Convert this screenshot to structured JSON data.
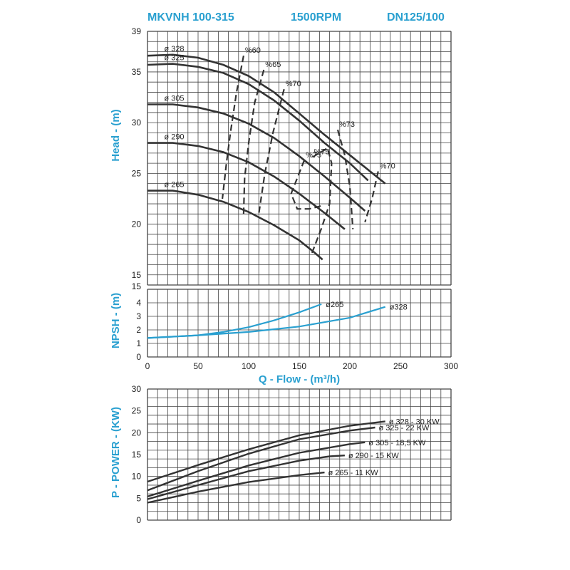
{
  "header": {
    "model": "MKVNH 100-315",
    "speed": "1500RPM",
    "size": "DN125/100"
  },
  "colors": {
    "accent": "#2aa0d0",
    "curve": "#333333",
    "grid": "#444444",
    "npsh": "#2aa0d0"
  },
  "chart_data": [
    {
      "type": "line",
      "name": "head",
      "ylabel": "Head - (m)",
      "xlim": [
        0,
        300
      ],
      "ylim": [
        14,
        39
      ],
      "yticks": [
        39,
        35,
        30,
        25,
        20,
        15
      ],
      "series": [
        {
          "label": "ø 328",
          "points": [
            [
              0,
              36.6
            ],
            [
              25,
              36.7
            ],
            [
              50,
              36.4
            ],
            [
              75,
              35.7
            ],
            [
              100,
              34.6
            ],
            [
              125,
              33.0
            ],
            [
              150,
              30.9
            ],
            [
              175,
              28.8
            ],
            [
              200,
              26.8
            ],
            [
              225,
              24.8
            ],
            [
              235,
              24.0
            ]
          ]
        },
        {
          "label": "ø 325",
          "points": [
            [
              0,
              35.7
            ],
            [
              25,
              35.8
            ],
            [
              50,
              35.5
            ],
            [
              75,
              34.9
            ],
            [
              100,
              33.8
            ],
            [
              125,
              32.2
            ],
            [
              150,
              30.2
            ],
            [
              175,
              28.0
            ],
            [
              200,
              26.0
            ],
            [
              218,
              24.3
            ]
          ]
        },
        {
          "label": "ø 305",
          "points": [
            [
              0,
              31.8
            ],
            [
              25,
              31.8
            ],
            [
              50,
              31.5
            ],
            [
              75,
              30.9
            ],
            [
              100,
              29.9
            ],
            [
              125,
              28.5
            ],
            [
              150,
              26.7
            ],
            [
              175,
              24.7
            ],
            [
              200,
              22.6
            ],
            [
              215,
              21.3
            ]
          ]
        },
        {
          "label": "ø 290",
          "points": [
            [
              0,
              28.0
            ],
            [
              25,
              28.0
            ],
            [
              50,
              27.7
            ],
            [
              75,
              27.1
            ],
            [
              100,
              26.1
            ],
            [
              125,
              24.7
            ],
            [
              150,
              23.0
            ],
            [
              175,
              21.1
            ],
            [
              195,
              19.5
            ]
          ]
        },
        {
          "label": "ø 265",
          "points": [
            [
              0,
              23.3
            ],
            [
              25,
              23.3
            ],
            [
              50,
              22.9
            ],
            [
              75,
              22.2
            ],
            [
              100,
              21.2
            ],
            [
              125,
              19.9
            ],
            [
              150,
              18.4
            ],
            [
              165,
              17.2
            ],
            [
              173,
              16.5
            ]
          ]
        }
      ],
      "efficiency_lines": [
        {
          "label": "%60",
          "points": [
            [
              95,
              36.6
            ],
            [
              88,
              33
            ],
            [
              82,
              29
            ],
            [
              78,
              26
            ],
            [
              74,
              22.5
            ]
          ]
        },
        {
          "label": "%65",
          "points": [
            [
              115,
              35.2
            ],
            [
              106,
              32
            ],
            [
              100,
              28
            ],
            [
              96,
              24.5
            ],
            [
              95,
              21
            ]
          ]
        },
        {
          "label": "%70",
          "points": [
            [
              135,
              33.3
            ],
            [
              124,
              29
            ],
            [
              116,
              25
            ],
            [
              110,
              21
            ]
          ]
        },
        {
          "label": "%70",
          "points": [
            [
              228,
              25.2
            ],
            [
              222,
              22.5
            ],
            [
              215,
              20.2
            ]
          ]
        },
        {
          "label": "%73",
          "points": [
            [
              188,
              29.3
            ],
            [
              195,
              26.8
            ],
            [
              200,
              23.7
            ],
            [
              203,
              19.5
            ]
          ]
        },
        {
          "label": "%75",
          "points": [
            [
              155,
              26.3
            ],
            [
              142,
              23.0
            ],
            [
              148,
              21.5
            ],
            [
              160,
              21.5
            ],
            [
              172,
              21.8
            ]
          ]
        },
        {
          "label": "%75",
          "points": [
            [
              163,
              26.6
            ],
            [
              178,
              27.5
            ],
            [
              182,
              26
            ],
            [
              180,
              22
            ],
            [
              172,
              19.6
            ],
            [
              162,
              17.0
            ]
          ]
        }
      ]
    },
    {
      "type": "line",
      "name": "npsh",
      "ylabel": "NPSH - (m)",
      "xlim": [
        0,
        300
      ],
      "ylim": [
        0,
        5
      ],
      "yticks": [
        4,
        3,
        2,
        1,
        0
      ],
      "series": [
        {
          "label": "ø265",
          "points": [
            [
              0,
              1.4
            ],
            [
              25,
              1.5
            ],
            [
              50,
              1.6
            ],
            [
              75,
              1.85
            ],
            [
              100,
              2.2
            ],
            [
              125,
              2.7
            ],
            [
              150,
              3.3
            ],
            [
              172,
              3.9
            ]
          ]
        },
        {
          "label": "ø328",
          "points": [
            [
              0,
              1.4
            ],
            [
              50,
              1.6
            ],
            [
              100,
              1.85
            ],
            [
              150,
              2.25
            ],
            [
              200,
              2.9
            ],
            [
              235,
              3.7
            ]
          ]
        }
      ]
    },
    {
      "type": "line",
      "name": "power",
      "xlabel": "Q - Flow - (m³/h)",
      "ylabel": "P - POWER - (KW)",
      "xlim": [
        0,
        300
      ],
      "xticks": [
        0,
        50,
        100,
        150,
        200,
        250,
        300
      ],
      "ylim": [
        0,
        30
      ],
      "yticks": [
        30,
        25,
        20,
        15,
        10,
        5,
        0
      ],
      "series": [
        {
          "label": "ø 328 - 30 KW",
          "points": [
            [
              0,
              8.8
            ],
            [
              50,
              12.6
            ],
            [
              100,
              16.2
            ],
            [
              150,
              19.4
            ],
            [
              200,
              21.6
            ],
            [
              235,
              22.6
            ]
          ]
        },
        {
          "label": "ø 325 - 22 KW",
          "points": [
            [
              0,
              6.8
            ],
            [
              50,
              11.2
            ],
            [
              100,
              15.2
            ],
            [
              150,
              18.5
            ],
            [
              200,
              20.5
            ],
            [
              225,
              21.2
            ]
          ]
        },
        {
          "label": "ø 305 - 18,5 KW",
          "points": [
            [
              0,
              5.4
            ],
            [
              50,
              9.0
            ],
            [
              100,
              12.5
            ],
            [
              150,
              15.4
            ],
            [
              200,
              17.4
            ],
            [
              215,
              17.8
            ]
          ]
        },
        {
          "label": "ø 290 - 15 KW",
          "points": [
            [
              0,
              4.8
            ],
            [
              50,
              8.0
            ],
            [
              100,
              11.2
            ],
            [
              150,
              13.6
            ],
            [
              180,
              14.6
            ],
            [
              195,
              14.8
            ]
          ]
        },
        {
          "label": "ø 265 - 11 KW",
          "points": [
            [
              0,
              4.0
            ],
            [
              50,
              6.5
            ],
            [
              100,
              8.7
            ],
            [
              150,
              10.3
            ],
            [
              175,
              10.9
            ]
          ]
        }
      ]
    }
  ]
}
